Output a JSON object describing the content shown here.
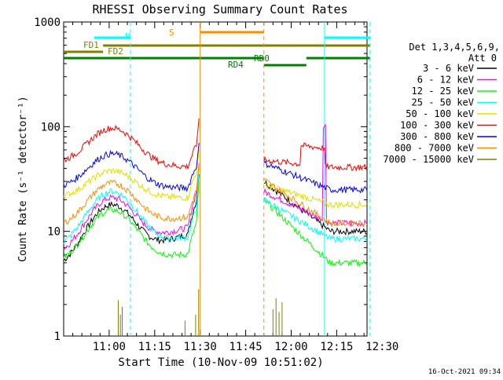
{
  "chart_data": {
    "type": "line",
    "title": "RHESSI Observing Summary Count Rates",
    "xlabel": "Start Time (10-Nov-09 10:51:02)",
    "ylabel": "Count Rate (s⁻¹ detector⁻¹)",
    "yscale": "log",
    "ylim": [
      1,
      1000
    ],
    "xlim_min": [
      -6,
      94
    ],
    "x_unit": "minutes after 10:51:02",
    "x_ticks": [
      {
        "t": 9,
        "label": "11:00"
      },
      {
        "t": 24,
        "label": "11:15"
      },
      {
        "t": 39,
        "label": "11:30"
      },
      {
        "t": 54,
        "label": "11:45"
      },
      {
        "t": 69,
        "label": "12:00"
      },
      {
        "t": 84,
        "label": "12:15"
      },
      {
        "t": 99,
        "label": "12:30"
      }
    ],
    "y_ticks": [
      {
        "v": 1,
        "label": "1"
      },
      {
        "v": 10,
        "label": "10"
      },
      {
        "v": 100,
        "label": "100"
      },
      {
        "v": 1000,
        "label": "1000"
      }
    ],
    "legend_header": [
      "Det 1,3,4,5,6,9,",
      "Att 0"
    ],
    "series": [
      {
        "name": "3 - 6 keV",
        "color": "#000000",
        "peak": 18,
        "pre_base": 4.5,
        "pre_end": 10,
        "flare": 35,
        "post_start": 30,
        "post_end": 10,
        "kind": "rate"
      },
      {
        "name": "6 - 12 keV",
        "color": "#ff00ff",
        "peak": 21,
        "pre_base": 6,
        "pre_end": 11.5,
        "flare": 45,
        "post_start": 24,
        "post_end": 12,
        "kind": "rate"
      },
      {
        "name": "12 - 25 keV",
        "color": "#00ff00",
        "peak": 16,
        "pre_base": 5,
        "pre_end": 6.2,
        "flare": 30,
        "post_start": 20,
        "post_end": 5,
        "kind": "rate"
      },
      {
        "name": "25 - 50 keV",
        "color": "#00ffff",
        "peak": 24,
        "pre_base": 7,
        "pre_end": 9,
        "flare": 40,
        "post_start": 20,
        "post_end": 8.5,
        "kind": "rate"
      },
      {
        "name": "50 - 100 keV",
        "color": "#e0e000",
        "peak": 38,
        "pre_base": 21,
        "pre_end": 21,
        "flare": 60,
        "post_start": 28,
        "post_end": 18,
        "kind": "rate"
      },
      {
        "name": "100 - 300 keV",
        "color": "#ff0000",
        "peak": 97,
        "pre_base": 45,
        "pre_end": 41,
        "flare": 120,
        "post_start": 48,
        "post_end": 41,
        "kind": "rate"
      },
      {
        "name": "300 - 800 keV",
        "color": "#0000ff",
        "peak": 55,
        "pre_base": 26,
        "pre_end": 26,
        "flare": 70,
        "post_start": 45,
        "post_end": 25,
        "kind": "rate"
      },
      {
        "name": "800 - 7000 keV",
        "color": "#ff8c00",
        "peak": 29,
        "pre_base": 11,
        "pre_end": 14,
        "flare": 45,
        "post_start": 31,
        "post_end": 12,
        "kind": "rate"
      },
      {
        "name": "7000 - 15000 keV",
        "color": "#808000",
        "peak": 2.3,
        "kind": "spikes"
      }
    ],
    "markers": {
      "N": {
        "label": "N",
        "color": "#00ffff"
      },
      "S": {
        "label": "S",
        "color": "#ff8c00"
      },
      "FD1": {
        "label": "FD1",
        "color": "#808000"
      },
      "FD2": {
        "label": "FD2",
        "color": "#808000"
      },
      "RD0": {
        "label": "RD0",
        "color": "#008000"
      },
      "RD4": {
        "label": "RD4",
        "color": "#008000"
      }
    },
    "event_times_min": {
      "N_start": 4,
      "N_end": 16,
      "S_start": 39,
      "S_end": 60,
      "N2_start": 80,
      "N2_end": 95,
      "FD1_start": -6,
      "FD1_end": 7,
      "FD2_start": 7,
      "FD2_end": 95,
      "RD0_start": 60,
      "RD0_end": 74,
      "RD4_start": 60,
      "RD4_end": 72
    },
    "timestamp": "16-Oct-2021 09:34"
  }
}
